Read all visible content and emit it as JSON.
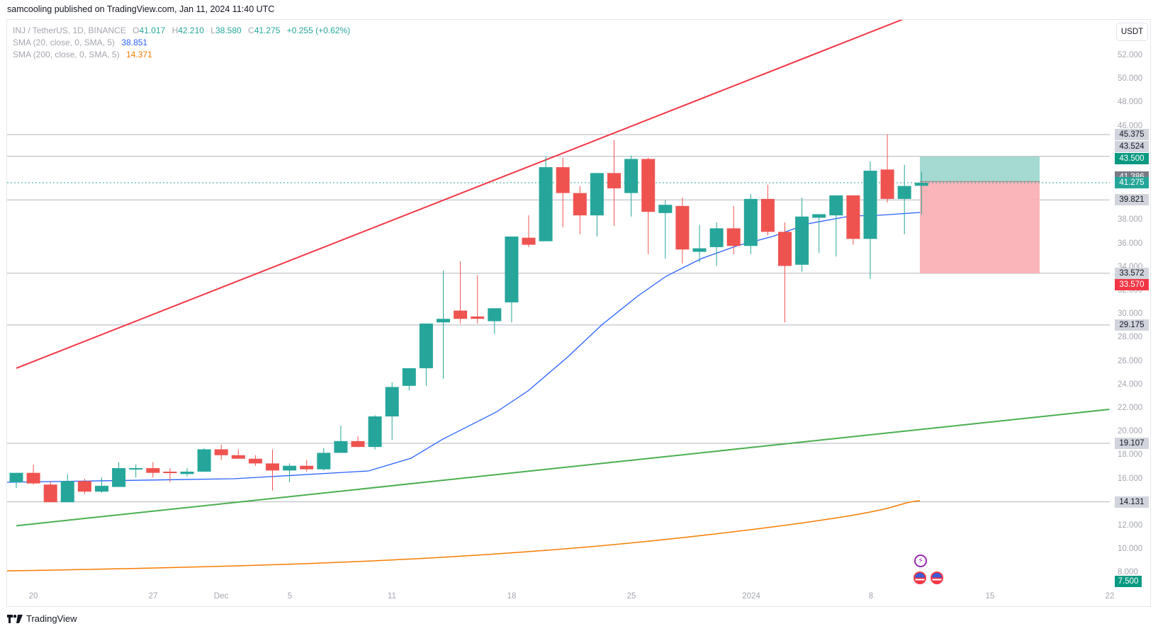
{
  "published": "samcooling published on TradingView.com, Jan 11, 2024 11:40 UTC",
  "legend": {
    "symbol": "INJ / TetherUS, 1D, BINANCE",
    "open_label": "O",
    "open": "41.017",
    "high_label": "H",
    "high": "42.210",
    "low_label": "L",
    "low": "38.580",
    "close_label": "C",
    "close": "41.275",
    "change": "+0.255 (+0.62%)",
    "sma20_label": "SMA (20, close, 0, SMA, 5)",
    "sma20_value": "38.851",
    "sma200_label": "SMA (200, close, 0, SMA, 5)",
    "sma200_value": "14.371"
  },
  "currency_button": "USDT",
  "colors": {
    "up": "#26a69a",
    "down": "#ef5350",
    "sma20": "#2962ff",
    "sma200": "#f57c00",
    "resistance_line": "#f23645",
    "support_line": "#4caf50",
    "target_zone": "#9fd8cf",
    "stop_zone": "#f9b1b6"
  },
  "price_axis_ticks": [
    "52.000",
    "50.000",
    "48.000",
    "46.000",
    "38.000",
    "36.000",
    "34.000",
    "32.000",
    "30.000",
    "28.000",
    "26.000",
    "24.000",
    "22.000",
    "20.000",
    "18.000",
    "16.000",
    "12.000",
    "10.000",
    "8.000"
  ],
  "price_labels": [
    {
      "value": "45.375",
      "kind": "hline"
    },
    {
      "value": "43.524",
      "kind": "hline"
    },
    {
      "value": "43.500",
      "kind": "target"
    },
    {
      "value": "41.386",
      "kind": "entry"
    },
    {
      "value": "41.275",
      "kind": "last"
    },
    {
      "value": "39.821",
      "kind": "hline"
    },
    {
      "value": "33.572",
      "kind": "hline"
    },
    {
      "value": "33.570",
      "kind": "stop"
    },
    {
      "value": "29.175",
      "kind": "hline"
    },
    {
      "value": "19.107",
      "kind": "hline"
    },
    {
      "value": "14.131",
      "kind": "hline"
    },
    {
      "value": "7.500",
      "kind": "bottom"
    }
  ],
  "time_axis_ticks": [
    "20",
    "27",
    "Dec",
    "5",
    "11",
    "18",
    "25",
    "2024",
    "8",
    "15",
    "22"
  ],
  "branding": "TradingView",
  "chart_data": {
    "type": "candlestick",
    "title": "INJ / TetherUS, 1D, BINANCE",
    "xlabel": "",
    "ylabel": "USDT",
    "ylim": [
      7.5,
      53.5
    ],
    "x_range": [
      "2023-11-19",
      "2024-01-23"
    ],
    "candles": [
      {
        "d": "2023-11-19",
        "o": 15.8,
        "h": 16.4,
        "l": 15.3,
        "c": 16.6
      },
      {
        "d": "2023-11-20",
        "o": 16.6,
        "h": 17.3,
        "l": 15.6,
        "c": 15.7
      },
      {
        "d": "2023-11-21",
        "o": 15.6,
        "h": 15.9,
        "l": 14.1,
        "c": 14.1
      },
      {
        "d": "2023-11-22",
        "o": 14.1,
        "h": 16.5,
        "l": 14.1,
        "c": 15.9
      },
      {
        "d": "2023-11-23",
        "o": 15.9,
        "h": 16.1,
        "l": 14.8,
        "c": 15.0
      },
      {
        "d": "2023-11-24",
        "o": 15.0,
        "h": 16.2,
        "l": 14.9,
        "c": 15.5
      },
      {
        "d": "2023-11-25",
        "o": 15.4,
        "h": 17.5,
        "l": 15.4,
        "c": 17.0
      },
      {
        "d": "2023-11-26",
        "o": 17.0,
        "h": 17.3,
        "l": 16.2,
        "c": 17.0
      },
      {
        "d": "2023-11-27",
        "o": 17.0,
        "h": 17.5,
        "l": 16.2,
        "c": 16.6
      },
      {
        "d": "2023-11-28",
        "o": 16.7,
        "h": 17.0,
        "l": 15.8,
        "c": 16.6
      },
      {
        "d": "2023-11-29",
        "o": 16.5,
        "h": 17.0,
        "l": 16.3,
        "c": 16.7
      },
      {
        "d": "2023-11-30",
        "o": 16.7,
        "h": 18.7,
        "l": 16.7,
        "c": 18.6
      },
      {
        "d": "2023-12-01",
        "o": 18.6,
        "h": 19.0,
        "l": 17.7,
        "c": 18.1
      },
      {
        "d": "2023-12-02",
        "o": 18.1,
        "h": 18.6,
        "l": 17.8,
        "c": 17.8
      },
      {
        "d": "2023-12-03",
        "o": 17.8,
        "h": 18.1,
        "l": 17.2,
        "c": 17.4
      },
      {
        "d": "2023-12-04",
        "o": 17.4,
        "h": 18.6,
        "l": 15.1,
        "c": 16.8
      },
      {
        "d": "2023-12-05",
        "o": 16.8,
        "h": 17.4,
        "l": 15.8,
        "c": 17.2
      },
      {
        "d": "2023-12-06",
        "o": 17.2,
        "h": 17.7,
        "l": 16.7,
        "c": 16.9
      },
      {
        "d": "2023-12-07",
        "o": 16.9,
        "h": 18.7,
        "l": 16.8,
        "c": 18.3
      },
      {
        "d": "2023-12-08",
        "o": 18.3,
        "h": 20.6,
        "l": 18.3,
        "c": 19.3
      },
      {
        "d": "2023-12-09",
        "o": 19.3,
        "h": 19.7,
        "l": 18.8,
        "c": 18.8
      },
      {
        "d": "2023-12-10",
        "o": 18.8,
        "h": 21.5,
        "l": 18.6,
        "c": 21.4
      },
      {
        "d": "2023-12-11",
        "o": 21.4,
        "h": 24.3,
        "l": 19.4,
        "c": 23.9
      },
      {
        "d": "2023-12-12",
        "o": 24.0,
        "h": 25.5,
        "l": 23.6,
        "c": 25.5
      },
      {
        "d": "2023-12-13",
        "o": 25.5,
        "h": 28.2,
        "l": 24.0,
        "c": 29.3
      },
      {
        "d": "2023-12-14",
        "o": 29.4,
        "h": 33.8,
        "l": 24.6,
        "c": 29.7
      },
      {
        "d": "2023-12-15",
        "o": 30.4,
        "h": 34.6,
        "l": 29.3,
        "c": 29.7
      },
      {
        "d": "2023-12-16",
        "o": 29.9,
        "h": 33.4,
        "l": 29.3,
        "c": 29.7
      },
      {
        "d": "2023-12-17",
        "o": 29.5,
        "h": 30.6,
        "l": 28.4,
        "c": 30.6
      },
      {
        "d": "2023-12-18",
        "o": 31.1,
        "h": 36.7,
        "l": 29.4,
        "c": 36.7
      },
      {
        "d": "2023-12-19",
        "o": 36.6,
        "h": 38.5,
        "l": 35.8,
        "c": 36.0
      },
      {
        "d": "2023-12-20",
        "o": 36.3,
        "h": 43.5,
        "l": 36.3,
        "c": 42.6
      },
      {
        "d": "2023-12-21",
        "o": 42.6,
        "h": 43.4,
        "l": 37.5,
        "c": 40.4
      },
      {
        "d": "2023-12-22",
        "o": 40.4,
        "h": 41.0,
        "l": 36.9,
        "c": 38.5
      },
      {
        "d": "2023-12-23",
        "o": 38.5,
        "h": 41.1,
        "l": 36.7,
        "c": 42.1
      },
      {
        "d": "2023-12-24",
        "o": 42.1,
        "h": 44.9,
        "l": 37.6,
        "c": 40.8
      },
      {
        "d": "2023-12-25",
        "o": 40.4,
        "h": 43.6,
        "l": 38.4,
        "c": 43.3
      },
      {
        "d": "2023-12-26",
        "o": 43.3,
        "h": 43.4,
        "l": 35.2,
        "c": 38.8
      },
      {
        "d": "2023-12-27",
        "o": 38.7,
        "h": 39.8,
        "l": 34.8,
        "c": 39.4
      },
      {
        "d": "2023-12-28",
        "o": 39.3,
        "h": 40.0,
        "l": 34.4,
        "c": 35.6
      },
      {
        "d": "2023-12-29",
        "o": 35.4,
        "h": 37.7,
        "l": 34.5,
        "c": 35.7
      },
      {
        "d": "2023-12-30",
        "o": 35.8,
        "h": 37.9,
        "l": 34.2,
        "c": 37.4
      },
      {
        "d": "2023-12-31",
        "o": 37.4,
        "h": 39.3,
        "l": 35.2,
        "c": 35.9
      },
      {
        "d": "2024-01-01",
        "o": 35.9,
        "h": 40.3,
        "l": 35.2,
        "c": 39.9
      },
      {
        "d": "2024-01-02",
        "o": 39.9,
        "h": 41.1,
        "l": 36.8,
        "c": 37.1
      },
      {
        "d": "2024-01-03",
        "o": 37.1,
        "h": 37.9,
        "l": 29.4,
        "c": 34.2
      },
      {
        "d": "2024-01-04",
        "o": 34.3,
        "h": 40.0,
        "l": 33.7,
        "c": 38.4
      },
      {
        "d": "2024-01-05",
        "o": 38.3,
        "h": 38.6,
        "l": 35.3,
        "c": 38.6
      },
      {
        "d": "2024-01-06",
        "o": 38.5,
        "h": 40.2,
        "l": 35.0,
        "c": 40.2
      },
      {
        "d": "2024-01-07",
        "o": 40.2,
        "h": 39.3,
        "l": 36.0,
        "c": 36.5
      },
      {
        "d": "2024-01-08",
        "o": 36.5,
        "h": 43.1,
        "l": 33.1,
        "c": 42.3
      },
      {
        "d": "2024-01-09",
        "o": 42.4,
        "h": 45.4,
        "l": 39.6,
        "c": 39.9
      },
      {
        "d": "2024-01-10",
        "o": 39.9,
        "h": 42.8,
        "l": 36.9,
        "c": 41.0
      },
      {
        "d": "2024-01-11",
        "o": 41.017,
        "h": 42.21,
        "l": 38.58,
        "c": 41.275
      }
    ],
    "indicators": [
      {
        "name": "SMA 20",
        "color": "#2962ff",
        "last": 38.851
      },
      {
        "name": "SMA 200",
        "color": "#f57c00",
        "last": 14.371
      }
    ],
    "horizontal_lines": [
      45.375,
      43.524,
      39.821,
      33.572,
      29.175,
      19.107,
      14.131
    ],
    "trend_lines": [
      {
        "name": "resistance",
        "color": "#f23645",
        "from": {
          "d": "2023-11-19",
          "p": 25.5
        },
        "to": {
          "d": "2024-01-11",
          "p": 55.8
        }
      },
      {
        "name": "support",
        "color": "#4caf50",
        "from": {
          "d": "2023-11-19",
          "p": 12.1
        },
        "to": {
          "d": "2024-01-22",
          "p": 22.0
        }
      }
    ],
    "long_position": {
      "entry": 41.386,
      "target": 43.5,
      "stop": 33.57,
      "from": "2024-01-11",
      "to": "2024-01-18"
    },
    "last_price": 41.275
  }
}
